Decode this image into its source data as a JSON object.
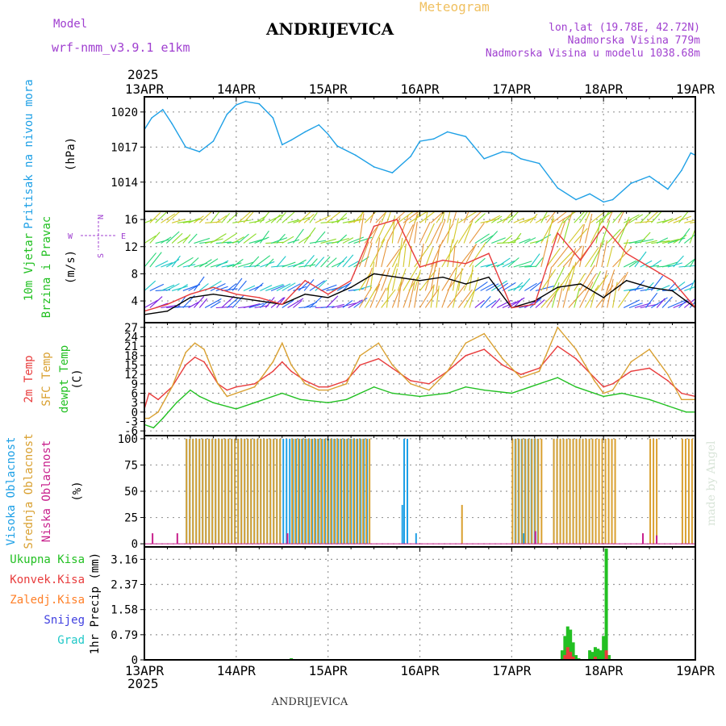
{
  "header": {
    "model_label": "Model",
    "model_name": "wrf-nmm_v3.9.1  e1km",
    "meteogram_label": "Meteogram",
    "title": "ANDRIJEVICA",
    "coords": "lon,lat (19.78E, 42.72N)",
    "elevation": "Nadmorska Visina 779m",
    "model_elevation": "Nadmorska Visina u modelu 1038.68m",
    "year_top": "2025",
    "year_bottom": "2025",
    "footer": "ANDRIJEVICA",
    "watermark": "made by Angel"
  },
  "colors": {
    "pressure": "#1ea0e6",
    "temp2m": "#e83c3c",
    "sfc_temp": "#d9a030",
    "dewpoint": "#22c022",
    "high_cloud": "#1ea0e6",
    "mid_cloud": "#d9a030",
    "low_cloud": "#c8208c",
    "total_precip": "#22c022",
    "conv_precip": "#e83c3c",
    "freezing": "#ff7f27",
    "snow": "#4040e0",
    "hail": "#20c8c8",
    "wind_speed": "#000000",
    "wind_gust": "#e83c3c",
    "wind_axis_label": "#a040d0"
  },
  "chart_data": {
    "x_ticks": [
      "13APR",
      "14APR",
      "15APR",
      "16APR",
      "17APR",
      "18APR",
      "19APR"
    ],
    "x_range_days": [
      0,
      6
    ],
    "panels": [
      {
        "id": "pressure",
        "type": "line",
        "ylabel_lines": [
          "Pritisak na nivou mora"
        ],
        "unit": "(hPa)",
        "yticks": [
          1014,
          1017,
          1020
        ],
        "ylim": [
          1011.5,
          1021.3
        ],
        "grid": true,
        "series": [
          {
            "color_key": "pressure",
            "x": [
              0,
              0.08,
              0.2,
              0.3,
              0.45,
              0.6,
              0.75,
              0.9,
              1.0,
              1.1,
              1.25,
              1.4,
              1.5,
              1.6,
              1.75,
              1.9,
              2.0,
              2.1,
              2.3,
              2.5,
              2.7,
              2.9,
              3.0,
              3.15,
              3.3,
              3.5,
              3.7,
              3.9,
              4.0,
              4.1,
              4.3,
              4.5,
              4.7,
              4.85,
              5.0,
              5.1,
              5.3,
              5.5,
              5.7,
              5.85,
              5.95,
              6.0
            ],
            "values": [
              1018.5,
              1019.5,
              1020.2,
              1019.0,
              1017.0,
              1016.6,
              1017.5,
              1019.8,
              1020.6,
              1020.9,
              1020.7,
              1019.5,
              1017.2,
              1017.6,
              1018.3,
              1018.9,
              1018.1,
              1017.1,
              1016.3,
              1015.3,
              1014.8,
              1016.2,
              1017.5,
              1017.7,
              1018.3,
              1017.9,
              1016.0,
              1016.6,
              1016.5,
              1016.0,
              1015.6,
              1013.5,
              1012.5,
              1013.0,
              1012.3,
              1012.5,
              1013.9,
              1014.5,
              1013.4,
              1015.0,
              1016.5,
              1016.3
            ]
          }
        ]
      },
      {
        "id": "wind",
        "type": "line",
        "ylabel_lines": [
          "10m Vjetar",
          "Brzina i Pravac"
        ],
        "unit": "(m/s)",
        "compass": {
          "n": "N",
          "s": "S",
          "e": "E",
          "w": "W"
        },
        "yticks": [
          4,
          8,
          12,
          16
        ],
        "ylim": [
          0.8,
          17.2
        ],
        "grid": true,
        "series": [
          {
            "color_key": "wind_speed",
            "x": [
              0,
              0.25,
              0.5,
              0.75,
              1.0,
              1.25,
              1.5,
              1.75,
              2.0,
              2.25,
              2.5,
              2.75,
              3.0,
              3.25,
              3.5,
              3.75,
              4.0,
              4.25,
              4.5,
              4.75,
              5.0,
              5.25,
              5.5,
              5.75,
              6.0
            ],
            "values": [
              2.0,
              2.5,
              4.5,
              5.0,
              4.5,
              4.0,
              3.5,
              5.0,
              4.5,
              6.0,
              8.0,
              7.5,
              7.0,
              7.5,
              6.5,
              7.5,
              3.0,
              4.0,
              6.0,
              6.5,
              4.5,
              7.0,
              6.0,
              5.5,
              3.0
            ]
          },
          {
            "color_key": "wind_gust",
            "x": [
              0,
              0.25,
              0.5,
              0.75,
              1.0,
              1.25,
              1.5,
              1.75,
              2.0,
              2.25,
              2.5,
              2.75,
              3.0,
              3.25,
              3.5,
              3.75,
              4.0,
              4.25,
              4.5,
              4.75,
              5.0,
              5.25,
              5.5,
              5.75,
              6.0
            ],
            "values": [
              2.5,
              3.5,
              5.0,
              6.0,
              5.0,
              4.5,
              3.5,
              7.0,
              5.0,
              7.0,
              15.0,
              16.0,
              9.0,
              10.0,
              9.5,
              11.0,
              3.0,
              3.5,
              14.0,
              10.0,
              15.0,
              11.0,
              9.0,
              7.0,
              3.0
            ]
          }
        ],
        "arrows": {
          "rows": [
            3,
            5.5,
            9,
            12.5,
            15.5
          ],
          "colors": [
            "#7a1ee0",
            "#1e64f0",
            "#1ec8c8",
            "#28d678",
            "#8cdc28",
            "#d2c828",
            "#e6963c"
          ]
        }
      },
      {
        "id": "temperature",
        "type": "line",
        "ylabel_lines": [
          "2m Temp",
          "SFC Temp",
          "dewpt Temp"
        ],
        "unit": "(C)",
        "yticks": [
          -6,
          -3,
          0,
          3,
          6,
          9,
          12,
          15,
          18,
          21,
          24,
          27
        ],
        "ylim": [
          -7.5,
          28.5
        ],
        "grid": true,
        "series": [
          {
            "color_key": "temp2m",
            "x": [
              0,
              0.05,
              0.15,
              0.3,
              0.45,
              0.55,
              0.65,
              0.8,
              0.9,
              1.0,
              1.2,
              1.4,
              1.5,
              1.6,
              1.75,
              1.9,
              2.0,
              2.2,
              2.35,
              2.55,
              2.7,
              2.9,
              3.1,
              3.3,
              3.5,
              3.7,
              3.9,
              4.1,
              4.3,
              4.5,
              4.7,
              4.9,
              5.0,
              5.1,
              5.3,
              5.5,
              5.7,
              5.85,
              6.0
            ],
            "values": [
              1,
              6,
              4,
              8,
              15,
              17.5,
              16,
              9,
              7,
              8,
              9,
              13,
              16,
              13,
              10,
              8,
              8,
              10,
              15,
              17,
              14,
              10,
              9,
              13,
              18,
              20,
              15,
              12,
              14,
              21,
              17,
              11,
              8,
              9,
              13,
              14,
              10,
              6,
              5
            ]
          },
          {
            "color_key": "sfc_temp",
            "x": [
              0,
              0.05,
              0.15,
              0.3,
              0.45,
              0.55,
              0.65,
              0.8,
              0.9,
              1.0,
              1.2,
              1.4,
              1.5,
              1.6,
              1.75,
              1.9,
              2.0,
              2.2,
              2.35,
              2.55,
              2.7,
              2.9,
              3.1,
              3.3,
              3.5,
              3.7,
              3.9,
              4.1,
              4.3,
              4.5,
              4.7,
              4.9,
              5.0,
              5.1,
              5.3,
              5.5,
              5.7,
              5.85,
              6.0
            ],
            "values": [
              -2,
              -2,
              0,
              8,
              19,
              22,
              20,
              9,
              5,
              6,
              8,
              16,
              22,
              15,
              9,
              7,
              7,
              9,
              18,
              22,
              15,
              9,
              7,
              13,
              22,
              25,
              17,
              11,
              13,
              27,
              20,
              10,
              6,
              7,
              16,
              20,
              12,
              4,
              4
            ]
          },
          {
            "color_key": "dewpoint",
            "x": [
              0,
              0.1,
              0.2,
              0.35,
              0.5,
              0.6,
              0.75,
              1.0,
              1.2,
              1.5,
              1.7,
              2.0,
              2.2,
              2.5,
              2.7,
              3.0,
              3.3,
              3.5,
              3.7,
              4.0,
              4.2,
              4.5,
              4.7,
              5.0,
              5.2,
              5.5,
              5.7,
              5.9,
              6.0
            ],
            "values": [
              -4,
              -5,
              -2,
              3,
              7,
              5,
              3,
              1,
              3,
              6,
              4,
              3,
              4,
              8,
              6,
              5,
              6,
              8,
              7,
              6,
              8,
              11,
              8,
              5,
              6,
              4,
              2,
              0,
              0
            ]
          }
        ]
      },
      {
        "id": "clouds",
        "type": "bar",
        "ylabel_lines": [
          "Visoka Oblacnost",
          "Srednja Oblacnost",
          "Niska Oblacnost"
        ],
        "unit": "(%)",
        "yticks": [
          0,
          25,
          50,
          75,
          100
        ],
        "ylim": [
          -3,
          103
        ],
        "grid": true,
        "series": [
          {
            "name_key": "high",
            "color_key": "high_cloud",
            "segments": [
              [
                0.45,
                2.45,
                100
              ],
              [
                2.82,
                2.88,
                100
              ],
              [
                2.8,
                2.82,
                37
              ],
              [
                2.95,
                2.98,
                10
              ],
              [
                4.03,
                4.3,
                100
              ],
              [
                4.12,
                4.15,
                10
              ],
              [
                4.45,
                4.9,
                100
              ]
            ]
          },
          {
            "name_key": "mid",
            "color_key": "mid_cloud",
            "segments": [
              [
                0.45,
                1.5,
                100
              ],
              [
                1.6,
                2.45,
                100
              ],
              [
                3.45,
                3.48,
                37
              ],
              [
                4.0,
                4.35,
                100
              ],
              [
                4.45,
                5.15,
                100
              ],
              [
                5.5,
                5.6,
                100
              ],
              [
                5.85,
                6.0,
                100
              ]
            ]
          },
          {
            "name_key": "low",
            "color_key": "low_cloud",
            "segments": [
              [
                0.08,
                0.09,
                10
              ],
              [
                0.35,
                0.36,
                10
              ],
              [
                1.55,
                1.56,
                10
              ],
              [
                4.25,
                4.26,
                12
              ],
              [
                5.42,
                5.43,
                10
              ],
              [
                5.57,
                5.58,
                8
              ]
            ]
          }
        ]
      },
      {
        "id": "precip",
        "type": "bar",
        "ylabel_lines": [
          "1hr Precip (mm)"
        ],
        "legend": [
          "Ukupna Kisa",
          "Konvek.Kisa",
          "Zaledj.Kisa",
          "Snijeg",
          "Grad"
        ],
        "legend_color_keys": [
          "total_precip",
          "conv_precip",
          "freezing",
          "snow",
          "hail"
        ],
        "yticks": [
          0,
          0.79,
          1.58,
          2.37,
          3.16
        ],
        "ylim": [
          0,
          3.55
        ],
        "grid": true,
        "series": [
          {
            "color_key": "total_precip",
            "x": [
              1.6,
              4.55,
              4.58,
              4.61,
              4.64,
              4.67,
              4.7,
              4.73,
              4.85,
              4.88,
              4.91,
              4.94,
              4.97,
              5.0,
              5.03,
              5.06
            ],
            "values": [
              0.05,
              0.3,
              0.75,
              1.05,
              0.95,
              0.55,
              0.15,
              0.05,
              0.3,
              0.25,
              0.4,
              0.35,
              0.3,
              0.75,
              3.5,
              0.15
            ]
          },
          {
            "color_key": "conv_precip",
            "x": [
              4.58,
              4.61,
              4.64,
              4.67,
              4.91,
              5.03
            ],
            "values": [
              0.15,
              0.4,
              0.25,
              0.1,
              0.1,
              0.3
            ]
          }
        ]
      }
    ]
  }
}
